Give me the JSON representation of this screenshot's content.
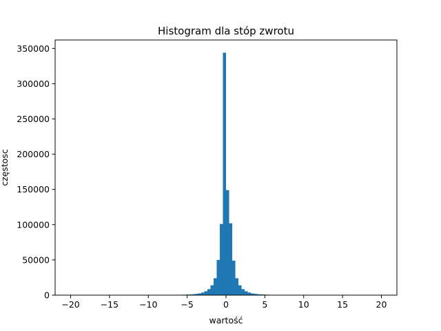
{
  "chart_data": {
    "type": "bar",
    "title": "Histogram dla stóp zwrotu",
    "xlabel": "wartość",
    "ylabel": "częstosc",
    "xlim": [
      -22,
      22
    ],
    "ylim": [
      0,
      362000
    ],
    "x_ticks": [
      -20,
      -15,
      -10,
      -5,
      0,
      5,
      10,
      15,
      20
    ],
    "x_tick_labels": [
      "−20",
      "−15",
      "−10",
      "−5",
      "0",
      "5",
      "10",
      "15",
      "20"
    ],
    "y_ticks": [
      0,
      50000,
      100000,
      150000,
      200000,
      250000,
      300000,
      350000
    ],
    "y_tick_labels": [
      "0",
      "50000",
      "100000",
      "150000",
      "200000",
      "250000",
      "300000",
      "350000"
    ],
    "bar_color": "#1f77b4",
    "bin_width": 0.4,
    "bins": [
      {
        "x": -6.4,
        "value": 300
      },
      {
        "x": -6.0,
        "value": 400
      },
      {
        "x": -5.6,
        "value": 600
      },
      {
        "x": -5.2,
        "value": 800
      },
      {
        "x": -4.8,
        "value": 1000
      },
      {
        "x": -4.4,
        "value": 1300
      },
      {
        "x": -4.0,
        "value": 1800
      },
      {
        "x": -3.6,
        "value": 2500
      },
      {
        "x": -3.2,
        "value": 3700
      },
      {
        "x": -2.8,
        "value": 5500
      },
      {
        "x": -2.4,
        "value": 8500
      },
      {
        "x": -2.0,
        "value": 14000
      },
      {
        "x": -1.6,
        "value": 24000
      },
      {
        "x": -1.2,
        "value": 50000
      },
      {
        "x": -0.8,
        "value": 101000
      },
      {
        "x": -0.4,
        "value": 344000
      },
      {
        "x": 0.0,
        "value": 149000
      },
      {
        "x": 0.4,
        "value": 102000
      },
      {
        "x": 0.8,
        "value": 49000
      },
      {
        "x": 1.2,
        "value": 24000
      },
      {
        "x": 1.6,
        "value": 14000
      },
      {
        "x": 2.0,
        "value": 8500
      },
      {
        "x": 2.4,
        "value": 5500
      },
      {
        "x": 2.8,
        "value": 3700
      },
      {
        "x": 3.2,
        "value": 2500
      },
      {
        "x": 3.6,
        "value": 1800
      },
      {
        "x": 4.0,
        "value": 1300
      },
      {
        "x": 4.4,
        "value": 1000
      },
      {
        "x": 4.8,
        "value": 800
      },
      {
        "x": 5.2,
        "value": 600
      },
      {
        "x": 5.6,
        "value": 400
      },
      {
        "x": 6.0,
        "value": 300
      }
    ]
  }
}
